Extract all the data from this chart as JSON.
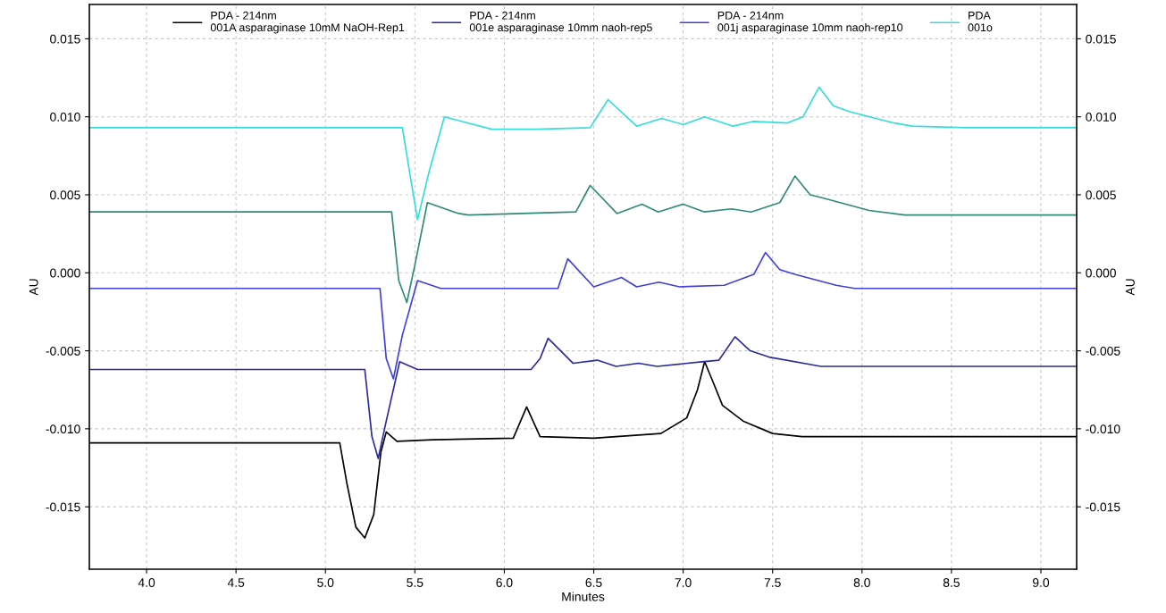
{
  "chart_data": {
    "type": "line",
    "xlabel": "Minutes",
    "ylabel": "AU",
    "y2label": "AU",
    "xlim": [
      3.68,
      9.2
    ],
    "ylim": [
      -0.019,
      0.0172
    ],
    "y2lim": [
      -0.019,
      0.0172
    ],
    "xticks": [
      {
        "value": 4,
        "label": "4.0"
      },
      {
        "value": 4.5,
        "label": "4.5"
      },
      {
        "value": 5,
        "label": "5.0"
      },
      {
        "value": 5.5,
        "label": "5.5"
      },
      {
        "value": 6,
        "label": "6.0"
      },
      {
        "value": 6.5,
        "label": "6.5"
      },
      {
        "value": 7,
        "label": "7.0"
      },
      {
        "value": 7.5,
        "label": "7.5"
      },
      {
        "value": 8,
        "label": "8.0"
      },
      {
        "value": 8.5,
        "label": "8.5"
      },
      {
        "value": 9,
        "label": "9.0"
      }
    ],
    "yticks": [
      {
        "value": -0.015,
        "label": "-0.015"
      },
      {
        "value": -0.01,
        "label": "-0.010"
      },
      {
        "value": -0.005,
        "label": "-0.005"
      },
      {
        "value": 0,
        "label": "0.000"
      },
      {
        "value": 0.005,
        "label": "0.005"
      },
      {
        "value": 0.01,
        "label": "0.010"
      },
      {
        "value": 0.015,
        "label": "0.015"
      }
    ],
    "y2ticks": [
      {
        "value": -0.015,
        "label": "-0.015"
      },
      {
        "value": -0.01,
        "label": "-0.010"
      },
      {
        "value": -0.005,
        "label": "-0.005"
      },
      {
        "value": 0,
        "label": "0.000"
      },
      {
        "value": 0.005,
        "label": "0.005"
      },
      {
        "value": 0.01,
        "label": "0.010"
      },
      {
        "value": 0.015,
        "label": "0.015"
      }
    ],
    "grid": true,
    "legend": "top",
    "marker": "none",
    "line_style": "solid",
    "series": [
      {
        "name": "PDA - 214nm\n001A asparaginase 10mM NaOH-Rep1",
        "color": "#000000",
        "x": [
          3.68,
          5.08,
          5.12,
          5.17,
          5.22,
          5.27,
          5.31,
          5.34,
          5.4,
          5.6,
          6.05,
          6.125,
          6.2,
          6.5,
          6.875,
          7.02,
          7.08,
          7.12,
          7.16,
          7.22,
          7.335,
          7.5,
          7.665,
          9.2
        ],
        "values": [
          -0.0109,
          -0.0109,
          -0.0135,
          -0.0163,
          -0.017,
          -0.0155,
          -0.0115,
          -0.0102,
          -0.0108,
          -0.0107,
          -0.0106,
          -0.0086,
          -0.0105,
          -0.0106,
          -0.0103,
          -0.0093,
          -0.0075,
          -0.0057,
          -0.0068,
          -0.0085,
          -0.0095,
          -0.0103,
          -0.0105,
          -0.0105
        ]
      },
      {
        "name": "PDA - 214nm\n001e asparaginase 10mm naoh-rep5",
        "color": "#2b2b9e",
        "x": [
          3.68,
          5.22,
          5.26,
          5.295,
          5.34,
          5.415,
          5.515,
          6.15,
          6.2,
          6.245,
          6.385,
          6.52,
          6.625,
          6.75,
          6.855,
          7.105,
          7.2,
          7.29,
          7.375,
          7.48,
          7.77,
          9.2
        ],
        "values": [
          -0.0062,
          -0.0062,
          -0.0105,
          -0.0119,
          -0.0095,
          -0.0057,
          -0.0062,
          -0.0062,
          -0.0055,
          -0.0042,
          -0.0058,
          -0.0056,
          -0.006,
          -0.0058,
          -0.006,
          -0.0057,
          -0.0056,
          -0.0041,
          -0.005,
          -0.0054,
          -0.006,
          -0.006
        ]
      },
      {
        "name": "PDA - 214nm\n001j asparaginase 10mm naoh-rep10",
        "color": "#4040d8",
        "x": [
          3.68,
          5.305,
          5.34,
          5.38,
          5.43,
          5.515,
          5.645,
          6.3,
          6.355,
          6.5,
          6.655,
          6.74,
          6.865,
          6.98,
          7.23,
          7.395,
          7.46,
          7.54,
          7.625,
          7.855,
          7.96,
          9.2
        ],
        "values": [
          -0.001,
          -0.001,
          -0.0055,
          -0.0068,
          -0.004,
          -0.0005,
          -0.001,
          -0.001,
          0.0009,
          -0.0009,
          -0.0003,
          -0.0009,
          -0.0006,
          -0.0009,
          -0.0008,
          -0.0001,
          0.0013,
          0.0002,
          -0.0001,
          -0.0008,
          -0.001,
          -0.001
        ]
      },
      {
        "color": "#2e8b78",
        "x": [
          3.68,
          5.37,
          5.41,
          5.455,
          5.5,
          5.57,
          5.745,
          5.8,
          6.4,
          6.48,
          6.63,
          6.77,
          6.86,
          7.0,
          7.12,
          7.27,
          7.38,
          7.54,
          7.625,
          7.71,
          7.78,
          8.04,
          8.24,
          9.2
        ],
        "values": [
          0.0039,
          0.0039,
          -0.0005,
          -0.0019,
          0.0005,
          0.0045,
          0.0038,
          0.0037,
          0.0039,
          0.0056,
          0.0038,
          0.0044,
          0.0039,
          0.0044,
          0.0039,
          0.0041,
          0.0039,
          0.0045,
          0.0062,
          0.005,
          0.0048,
          0.004,
          0.0037,
          0.0037
        ]
      },
      {
        "name": "PDA\n001o",
        "color": "#33dddd",
        "x": [
          3.68,
          5.43,
          5.47,
          5.515,
          5.58,
          5.665,
          5.93,
          6.18,
          6.48,
          6.58,
          6.74,
          6.88,
          7.0,
          7.12,
          7.28,
          7.39,
          7.58,
          7.67,
          7.76,
          7.84,
          7.94,
          8.18,
          8.28,
          8.58,
          9.2
        ],
        "values": [
          0.0093,
          0.0093,
          0.0065,
          0.0034,
          0.0065,
          0.01,
          0.0092,
          0.0092,
          0.0093,
          0.0111,
          0.0094,
          0.0099,
          0.0095,
          0.01,
          0.0094,
          0.0097,
          0.0096,
          0.01,
          0.0119,
          0.0107,
          0.0103,
          0.0096,
          0.0094,
          0.0093,
          0.0093
        ]
      }
    ]
  }
}
